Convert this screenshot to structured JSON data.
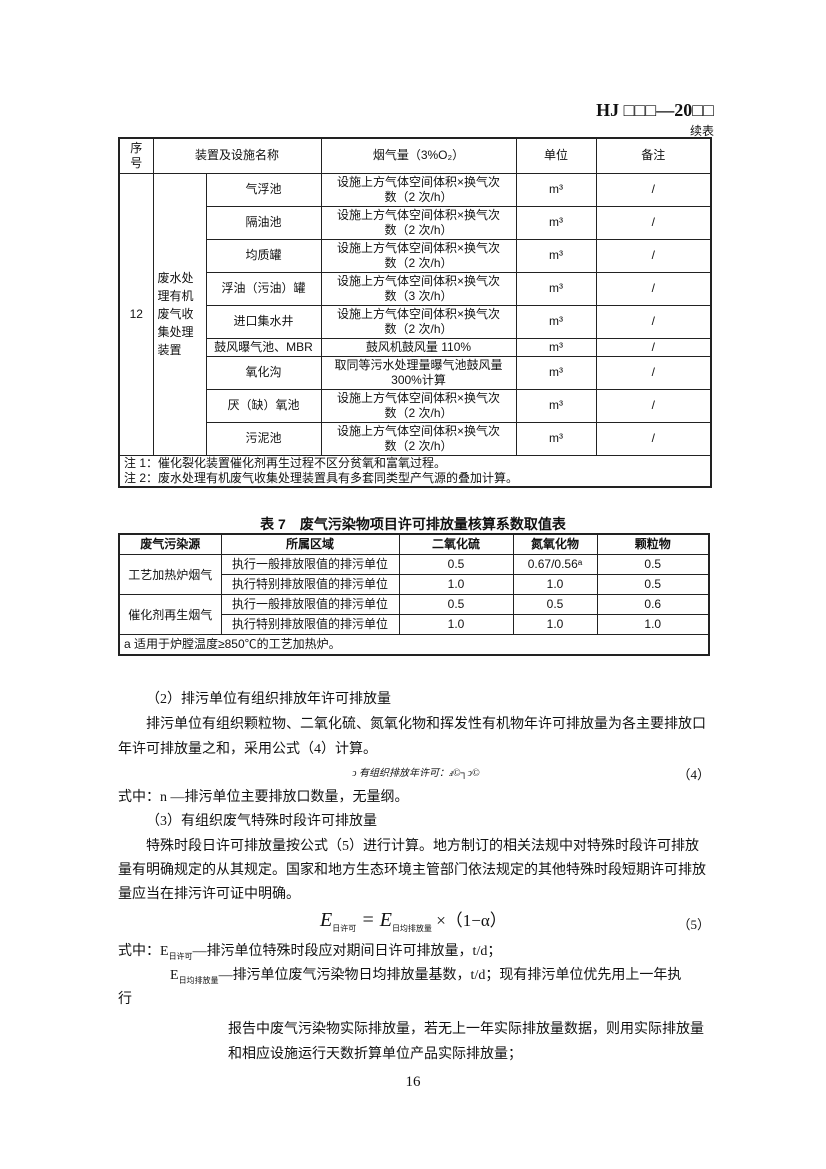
{
  "header": {
    "code": "HJ □□□—20□□",
    "continued": "续表"
  },
  "table6": {
    "headers": [
      "序号",
      "装置及设施名称",
      "烟气量（3%O₂）",
      "单位",
      "备注"
    ],
    "seq": "12",
    "category": "废水处理有机废气收集处理装置",
    "rows": [
      {
        "name": "气浮池",
        "flue": "设施上方气体空间体积×换气次数（2 次/h）",
        "unit": "m³",
        "note": "/"
      },
      {
        "name": "隔油池",
        "flue": "设施上方气体空间体积×换气次数（2 次/h）",
        "unit": "m³",
        "note": "/"
      },
      {
        "name": "均质罐",
        "flue": "设施上方气体空间体积×换气次数（2 次/h）",
        "unit": "m³",
        "note": "/"
      },
      {
        "name": "浮油（污油）罐",
        "flue": "设施上方气体空间体积×换气次数（3 次/h）",
        "unit": "m³",
        "note": "/"
      },
      {
        "name": "进口集水井",
        "flue": "设施上方气体空间体积×换气次数（2 次/h）",
        "unit": "m³",
        "note": "/"
      },
      {
        "name": "鼓风曝气池、MBR",
        "flue": "鼓风机鼓风量 110%",
        "unit": "m³",
        "note": "/"
      },
      {
        "name": "氧化沟",
        "flue": "取同等污水处理量曝气池鼓风量300%计算",
        "unit": "m³",
        "note": "/"
      },
      {
        "name": "厌（缺）氧池",
        "flue": "设施上方气体空间体积×换气次数（2 次/h）",
        "unit": "m³",
        "note": "/"
      },
      {
        "name": "污泥池",
        "flue": "设施上方气体空间体积×换气次数（2 次/h）",
        "unit": "m³",
        "note": "/"
      }
    ],
    "notes": [
      "注 1：催化裂化装置催化剂再生过程不区分贫氧和富氧过程。",
      "注 2：废水处理有机废气收集处理装置具有多套同类型产气源的叠加计算。"
    ]
  },
  "table7": {
    "title": "表 7　废气污染物项目许可排放量核算系数取值表",
    "headers": [
      "废气污染源",
      "所属区域",
      "二氧化硫",
      "氮氧化物",
      "颗粒物"
    ],
    "groups": [
      {
        "source": "工艺加热炉烟气",
        "rows": [
          [
            "执行一般排放限值的排污单位",
            "0.5",
            "0.67/0.56ᵃ",
            "0.5"
          ],
          [
            "执行特别排放限值的排污单位",
            "1.0",
            "1.0",
            "0.5"
          ]
        ]
      },
      {
        "source": "催化剂再生烟气",
        "rows": [
          [
            "执行一般排放限值的排污单位",
            "0.5",
            "0.5",
            "0.6"
          ],
          [
            "执行特别排放限值的排污单位",
            "1.0",
            "1.0",
            "1.0"
          ]
        ]
      }
    ],
    "footnote": "a 适用于炉膛温度≥850℃的工艺加热炉。"
  },
  "body": {
    "s2_heading": "（2）排污单位有组织排放年许可排放量",
    "s2_text": "排污单位有组织颗粒物、二氧化硫、氮氧化物和挥发性有机物年许可排放量为各主要排放口年许可排放量之和，采用公式（4）计算。",
    "eq4_garbled": "ↄ 有组织排放年许可：ⅎ©┐ↄ©",
    "eq4_num": "（4）",
    "eq4_where": "式中：n —排污单位主要排放口数量，无量纲。",
    "s3_heading": "（3）有组织废气特殊时段许可排放量",
    "s3_text": "特殊时段日许可排放量按公式（5）进行计算。地方制订的相关法规中对特殊时段许可排放量有明确规定的从其规定。国家和地方生态环境主管部门依法规定的其他特殊时段短期许可排放量应当在排污许可证中明确。",
    "eq5_lhs": "E",
    "eq5_lhs_sub": "日许可",
    "eq5_rhs": "E",
    "eq5_rhs_sub": "日均排放量",
    "eq5_tail": " ×（1−α）",
    "eq5_num": "（5）",
    "where1_prefix": "式中：E",
    "where1_sub": "日许可",
    "where1_text": "—排污单位特殊时段应对期间日许可排放量，t/d；",
    "where2_prefix": "E",
    "where2_sub": "日均排放量",
    "where2_text": "—排污单位废气污染物日均排放量基数，t/d；现有排污单位优先用上一年执",
    "where2_wrap": "行",
    "where2_cont": "报告中废气污染物实际排放量，若无上一年实际排放量数据，则用实际排放量和相应设施运行天数折算单位产品实际排放量；"
  },
  "page_number": "16"
}
